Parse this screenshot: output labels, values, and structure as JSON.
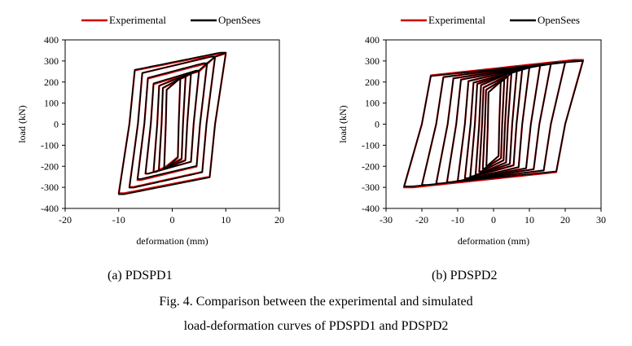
{
  "figure": {
    "caption_line1": "Fig. 4. Comparison between the experimental and simulated",
    "caption_line2": "load-deformation curves of PDSPD1 and PDSPD2"
  },
  "chart_data": [
    {
      "type": "line",
      "subcaption": "(a) PDSPD1",
      "xlabel": "deformation (mm)",
      "ylabel": "load (kN)",
      "xlim": [
        -20,
        20
      ],
      "ylim": [
        -400,
        400
      ],
      "xticks": [
        "-20",
        "-10",
        "0",
        "10",
        "20"
      ],
      "yticks": [
        "400",
        "300",
        "200",
        "100",
        "0",
        "-100",
        "-200",
        "-300",
        "-400"
      ],
      "grid": false,
      "legend_position": "top",
      "series": [
        {
          "name": "Experimental",
          "color": "#cc0000",
          "amplitudes_mm": [
            1.5,
            2.5,
            3.5,
            5,
            6.5,
            8,
            10
          ],
          "envelope": {
            "x": [
              -10.5,
              -8.3,
              -6.5,
              -5,
              -3.5,
              -2.5,
              -1.5,
              0,
              1.5,
              2.5,
              3.5,
              5,
              6.5,
              8,
              10.5
            ],
            "y": [
              -335,
              -305,
              -265,
              -235,
              -225,
              -215,
              -205,
              0,
              215,
              225,
              240,
              250,
              285,
              320,
              340
            ]
          }
        },
        {
          "name": "OpenSees",
          "color": "#000000",
          "amplitudes_mm": [
            1.5,
            2.5,
            3.5,
            5,
            6.5,
            8,
            10
          ],
          "envelope": {
            "x": [
              -10.5,
              -8.3,
              -6.5,
              -5,
              -3.5,
              -2.5,
              -1.5,
              0,
              1.5,
              2.5,
              3.5,
              5,
              6.5,
              8,
              10.5
            ],
            "y": [
              -340,
              -310,
              -260,
              -235,
              -228,
              -220,
              -210,
              0,
              215,
              228,
              240,
              255,
              290,
              320,
              345
            ]
          }
        }
      ]
    },
    {
      "type": "line",
      "subcaption": "(b) PDSPD2",
      "xlabel": "deformation (mm)",
      "ylabel": "load (kN)",
      "xlim": [
        -30,
        30
      ],
      "ylim": [
        -400,
        400
      ],
      "xticks": [
        "-30",
        "-20",
        "-10",
        "0",
        "10",
        "20",
        "30"
      ],
      "yticks": [
        "400",
        "300",
        "200",
        "100",
        "0",
        "-100",
        "-200",
        "-300",
        "-400"
      ],
      "grid": false,
      "legend_position": "top",
      "series": [
        {
          "name": "Experimental",
          "color": "#cc0000",
          "amplitudes_mm": [
            2,
            3,
            4,
            5,
            6.5,
            8,
            10,
            13,
            16,
            20,
            25
          ],
          "envelope": {
            "x": [
              -25,
              -20,
              -15,
              -10,
              -5,
              -2,
              0,
              2,
              5,
              10,
              15,
              20,
              25
            ],
            "y": [
              -300,
              -290,
              -280,
              -270,
              -240,
              -200,
              0,
              200,
              245,
              270,
              285,
              295,
              305
            ]
          }
        },
        {
          "name": "OpenSees",
          "color": "#000000",
          "amplitudes_mm": [
            2,
            3,
            4,
            5,
            6.5,
            8,
            10,
            13,
            16,
            20,
            25
          ],
          "envelope": {
            "x": [
              -25,
              -20,
              -15,
              -10,
              -5,
              -2,
              0,
              2,
              5,
              10,
              15,
              20,
              25
            ],
            "y": [
              -295,
              -288,
              -280,
              -268,
              -238,
              -198,
              0,
              198,
              242,
              268,
              283,
              293,
              300
            ]
          }
        }
      ]
    }
  ]
}
